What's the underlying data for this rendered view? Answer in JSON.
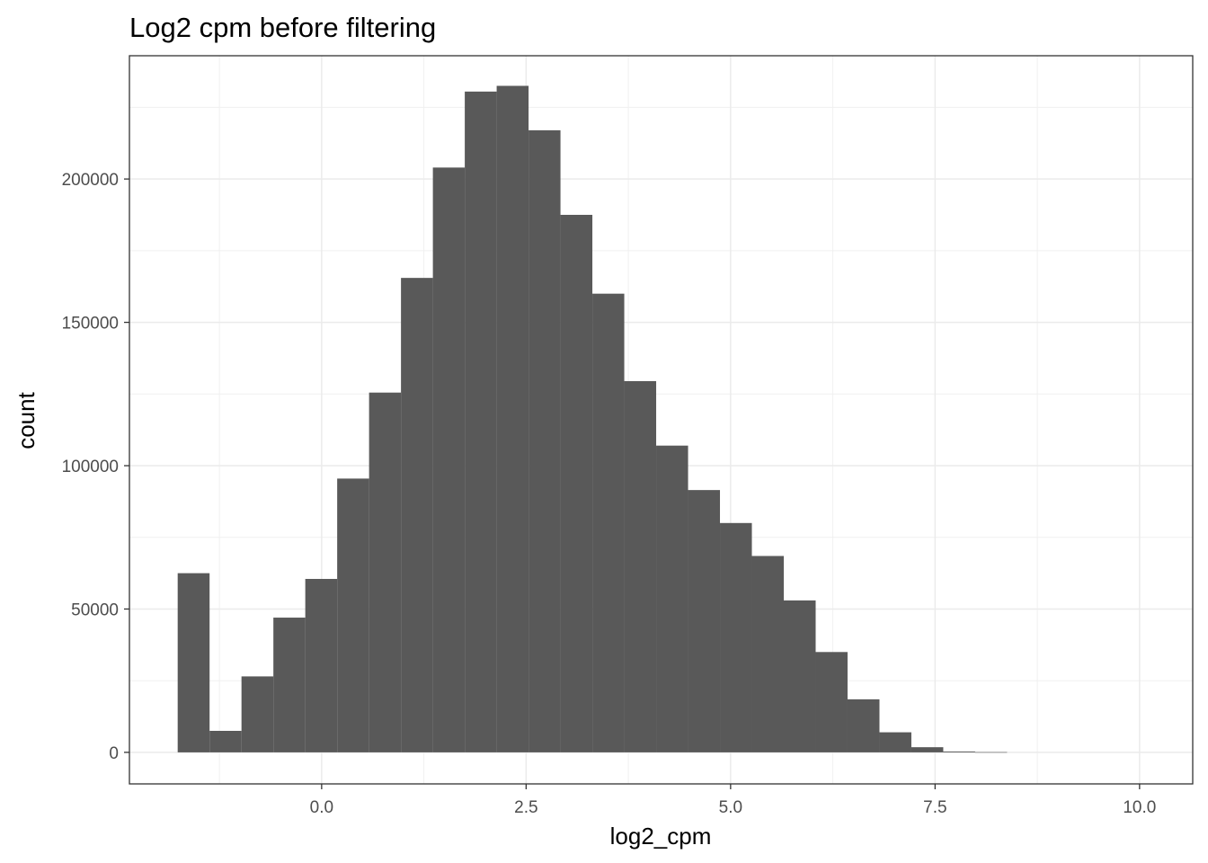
{
  "chart_data": {
    "type": "bar",
    "title": "Log2 cpm before filtering",
    "xlabel": "log2_cpm",
    "ylabel": "count",
    "xlim": [
      -2.35,
      10.65
    ],
    "ylim": [
      -11000,
      243000
    ],
    "x_ticks": [
      0.0,
      2.5,
      5.0,
      7.5,
      10.0
    ],
    "x_tick_labels": [
      "0.0",
      "2.5",
      "5.0",
      "7.5",
      "10.0"
    ],
    "y_ticks": [
      0,
      50000,
      100000,
      150000,
      200000
    ],
    "y_tick_labels": [
      "0",
      "50000",
      "100000",
      "150000",
      "200000"
    ],
    "grid": true,
    "legend": "none",
    "bar_color": "#595959",
    "bins": [
      {
        "x0": -1.76,
        "x1": -1.37,
        "value": 62500
      },
      {
        "x0": -1.37,
        "x1": -0.98,
        "value": 7500
      },
      {
        "x0": -0.98,
        "x1": -0.59,
        "value": 26500
      },
      {
        "x0": -0.59,
        "x1": -0.2,
        "value": 47000
      },
      {
        "x0": -0.2,
        "x1": 0.19,
        "value": 60500
      },
      {
        "x0": 0.19,
        "x1": 0.58,
        "value": 95500
      },
      {
        "x0": 0.58,
        "x1": 0.97,
        "value": 125500
      },
      {
        "x0": 0.97,
        "x1": 1.36,
        "value": 165500
      },
      {
        "x0": 1.36,
        "x1": 1.75,
        "value": 204000
      },
      {
        "x0": 1.75,
        "x1": 2.14,
        "value": 230500
      },
      {
        "x0": 2.14,
        "x1": 2.53,
        "value": 232500
      },
      {
        "x0": 2.53,
        "x1": 2.92,
        "value": 217000
      },
      {
        "x0": 2.92,
        "x1": 3.31,
        "value": 187500
      },
      {
        "x0": 3.31,
        "x1": 3.7,
        "value": 160000
      },
      {
        "x0": 3.7,
        "x1": 4.09,
        "value": 129500
      },
      {
        "x0": 4.09,
        "x1": 4.48,
        "value": 107000
      },
      {
        "x0": 4.48,
        "x1": 4.87,
        "value": 91500
      },
      {
        "x0": 4.87,
        "x1": 5.26,
        "value": 80000
      },
      {
        "x0": 5.26,
        "x1": 5.65,
        "value": 68500
      },
      {
        "x0": 5.65,
        "x1": 6.04,
        "value": 53000
      },
      {
        "x0": 6.04,
        "x1": 6.43,
        "value": 35000
      },
      {
        "x0": 6.43,
        "x1": 6.82,
        "value": 18500
      },
      {
        "x0": 6.82,
        "x1": 7.21,
        "value": 7000
      },
      {
        "x0": 7.21,
        "x1": 7.6,
        "value": 1800
      },
      {
        "x0": 7.6,
        "x1": 7.99,
        "value": 300
      },
      {
        "x0": 7.99,
        "x1": 8.38,
        "value": 80
      }
    ]
  }
}
